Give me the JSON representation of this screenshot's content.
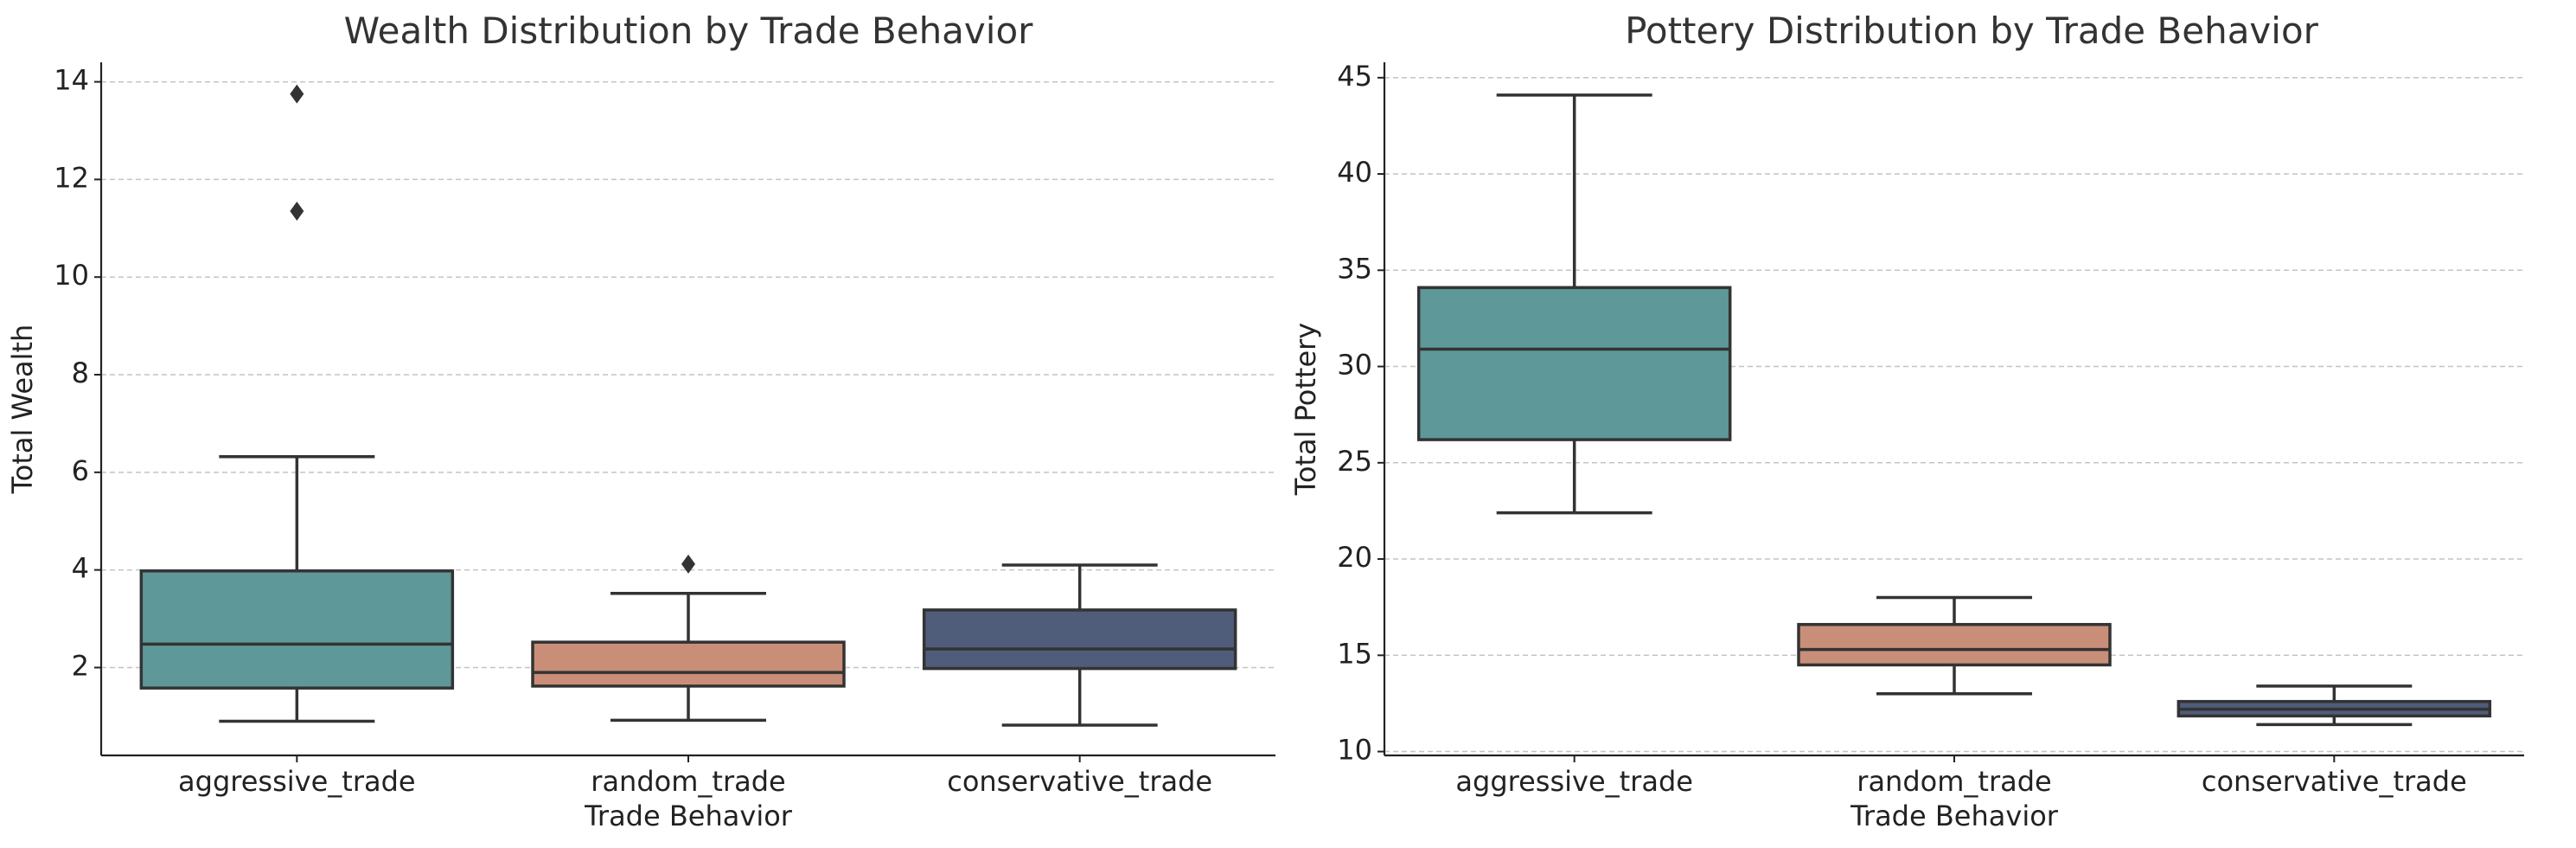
{
  "chart_data": [
    {
      "type": "box",
      "title": "Wealth Distribution by Trade Behavior",
      "xlabel": "Trade Behavior",
      "ylabel": "Total Wealth",
      "categories": [
        "aggressive_trade",
        "random_trade",
        "conservative_trade"
      ],
      "colors": [
        "#5f9898",
        "#c98e78",
        "#4f5d7a"
      ],
      "ylim": [
        0.2,
        14.4
      ],
      "yticks": [
        2,
        4,
        6,
        8,
        10,
        12,
        14
      ],
      "grid": true,
      "boxes": [
        {
          "category": "aggressive_trade",
          "whisker_low": 0.9,
          "q1": 1.58,
          "median": 2.48,
          "q3": 3.98,
          "whisker_high": 6.32,
          "outliers": [
            11.35,
            13.75
          ]
        },
        {
          "category": "random_trade",
          "whisker_low": 0.92,
          "q1": 1.62,
          "median": 1.9,
          "q3": 2.52,
          "whisker_high": 3.52,
          "outliers": [
            4.12
          ]
        },
        {
          "category": "conservative_trade",
          "whisker_low": 0.82,
          "q1": 1.98,
          "median": 2.38,
          "q3": 3.18,
          "whisker_high": 4.1,
          "outliers": []
        }
      ]
    },
    {
      "type": "box",
      "title": "Pottery Distribution by Trade Behavior",
      "xlabel": "Trade Behavior",
      "ylabel": "Total Pottery",
      "categories": [
        "aggressive_trade",
        "random_trade",
        "conservative_trade"
      ],
      "colors": [
        "#5f9898",
        "#c98e78",
        "#4f5d7a"
      ],
      "ylim": [
        9.8,
        45.8
      ],
      "yticks": [
        10,
        15,
        20,
        25,
        30,
        35,
        40,
        45
      ],
      "grid": true,
      "boxes": [
        {
          "category": "aggressive_trade",
          "whisker_low": 22.4,
          "q1": 26.2,
          "median": 30.9,
          "q3": 34.1,
          "whisker_high": 44.1,
          "outliers": []
        },
        {
          "category": "random_trade",
          "whisker_low": 13.0,
          "q1": 14.5,
          "median": 15.3,
          "q3": 16.6,
          "whisker_high": 18.0,
          "outliers": []
        },
        {
          "category": "conservative_trade",
          "whisker_low": 11.4,
          "q1": 11.85,
          "median": 12.2,
          "q3": 12.6,
          "whisker_high": 13.4,
          "outliers": []
        }
      ]
    }
  ]
}
